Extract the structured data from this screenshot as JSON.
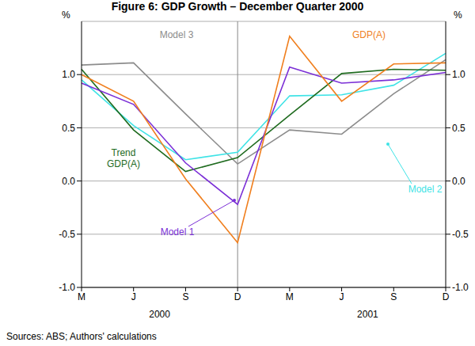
{
  "chart_data": {
    "type": "line",
    "title": "Figure 6: GDP Growth – December Quarter 2000",
    "ylabel": "%",
    "categories": [
      "M",
      "J",
      "S",
      "D",
      "M",
      "J",
      "S",
      "D"
    ],
    "groups": [
      "2000",
      "2001"
    ],
    "divider_index": 3,
    "ylim": [
      -1,
      1.5
    ],
    "yticks": [
      {
        "value": -1,
        "label": "-1.0"
      },
      {
        "value": -0.5,
        "label": "-0.5"
      },
      {
        "value": 0,
        "label": "0.0"
      },
      {
        "value": 0.5,
        "label": "0.5"
      },
      {
        "value": 1,
        "label": "1.0"
      }
    ],
    "grid": true,
    "series": [
      {
        "name": "Model 3",
        "color": "#8c8c8c",
        "values": [
          1.09,
          1.11,
          0.63,
          0.16,
          0.48,
          0.44,
          0.82,
          1.14
        ]
      },
      {
        "name": "Model 2",
        "color": "#3fe3e6",
        "values": [
          0.95,
          0.52,
          0.2,
          0.27,
          0.8,
          0.81,
          0.9,
          1.2
        ]
      },
      {
        "name": "Trend GDP(A)",
        "color": "#1f6b1f",
        "values": [
          1.05,
          0.48,
          0.09,
          0.22,
          0.62,
          1.01,
          1.05,
          1.04
        ]
      },
      {
        "name": "Model 1",
        "color": "#7b2fd6",
        "values": [
          0.92,
          0.72,
          0.17,
          -0.22,
          1.07,
          0.92,
          0.95,
          1.02
        ]
      },
      {
        "name": "GDP(A)",
        "color": "#f07f1e",
        "values": [
          1.0,
          0.75,
          0.02,
          -0.58,
          1.36,
          0.75,
          1.1,
          1.11
        ]
      }
    ],
    "source": "Sources:  ABS; Authors' calculations"
  }
}
